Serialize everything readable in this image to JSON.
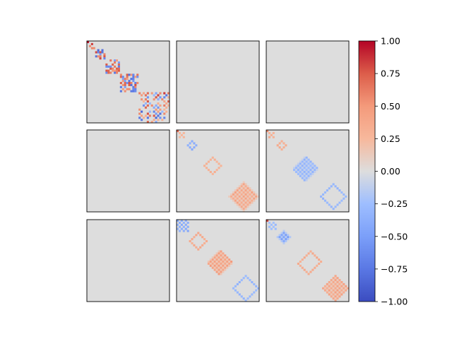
{
  "chart_data": {
    "type": "heatmap",
    "layout": {
      "rows": 3,
      "cols": 3
    },
    "matrix_size": 40,
    "colormap": "coolwarm",
    "vmin": -1.0,
    "vmax": 1.0,
    "colors": {
      "background": "#dddddd",
      "min": "#3b4cc0",
      "mid": "#dddddd",
      "max": "#b40426"
    },
    "colorbar": {
      "ticks": [
        1.0,
        0.75,
        0.5,
        0.25,
        0.0,
        -0.25,
        -0.5,
        -0.75,
        -1.0
      ],
      "tick_labels": [
        "1.00",
        "0.75",
        "0.50",
        "0.25",
        "0.00",
        "−0.25",
        "−0.50",
        "−0.75",
        "−1.00"
      ]
    },
    "panels": [
      {
        "row": 0,
        "col": 0,
        "blocks": [
          {
            "start": 0,
            "size": 1,
            "pattern": "diag",
            "amp": 0.95
          },
          {
            "start": 1,
            "size": 3,
            "pattern": "dense",
            "amp": 0.85
          },
          {
            "start": 4,
            "size": 5,
            "pattern": "dense",
            "amp": 0.85
          },
          {
            "start": 9,
            "size": 7,
            "pattern": "dense",
            "amp": 0.8
          },
          {
            "start": 16,
            "size": 9,
            "pattern": "dense",
            "amp": 0.8
          },
          {
            "start": 25,
            "size": 15,
            "pattern": "sparse",
            "amp": 0.85
          }
        ]
      },
      {
        "row": 0,
        "col": 1,
        "blocks": []
      },
      {
        "row": 0,
        "col": 2,
        "blocks": []
      },
      {
        "row": 1,
        "col": 0,
        "blocks": []
      },
      {
        "row": 1,
        "col": 1,
        "blocks": [
          {
            "start": 0,
            "size": 1,
            "pattern": "diag",
            "amp": 0.7
          },
          {
            "start": 1,
            "size": 3,
            "pattern": "sign",
            "amp": 0.3
          },
          {
            "start": 4,
            "size": 7,
            "pattern": "ring",
            "amp": -0.45
          },
          {
            "start": 13,
            "size": 9,
            "pattern": "ring",
            "amp": 0.35
          },
          {
            "start": 25,
            "size": 15,
            "pattern": "checker",
            "amp": 0.45
          }
        ]
      },
      {
        "row": 1,
        "col": 2,
        "blocks": [
          {
            "start": 0,
            "size": 1,
            "pattern": "diag",
            "amp": 0.55
          },
          {
            "start": 1,
            "size": 3,
            "pattern": "sign",
            "amp": 0.4
          },
          {
            "start": 4,
            "size": 7,
            "pattern": "ring",
            "amp": 0.4
          },
          {
            "start": 13,
            "size": 12,
            "pattern": "checker",
            "amp": -0.35
          },
          {
            "start": 25,
            "size": 15,
            "pattern": "ring",
            "amp": -0.35
          }
        ]
      },
      {
        "row": 2,
        "col": 0,
        "blocks": []
      },
      {
        "row": 2,
        "col": 1,
        "blocks": [
          {
            "start": 0,
            "size": 6,
            "pattern": "sign",
            "amp": -0.45
          },
          {
            "start": 6,
            "size": 9,
            "pattern": "ring",
            "amp": 0.4
          },
          {
            "start": 15,
            "size": 12,
            "pattern": "checker",
            "amp": 0.5
          },
          {
            "start": 27,
            "size": 13,
            "pattern": "ring",
            "amp": -0.35
          }
        ]
      },
      {
        "row": 2,
        "col": 2,
        "blocks": [
          {
            "start": 0,
            "size": 1,
            "pattern": "diag",
            "amp": 0.8
          },
          {
            "start": 1,
            "size": 4,
            "pattern": "sign",
            "amp": -0.3
          },
          {
            "start": 5,
            "size": 7,
            "pattern": "checker",
            "amp": -0.55
          },
          {
            "start": 15,
            "size": 12,
            "pattern": "ring",
            "amp": 0.4
          },
          {
            "start": 27,
            "size": 13,
            "pattern": "checker",
            "amp": 0.45
          }
        ]
      }
    ]
  }
}
